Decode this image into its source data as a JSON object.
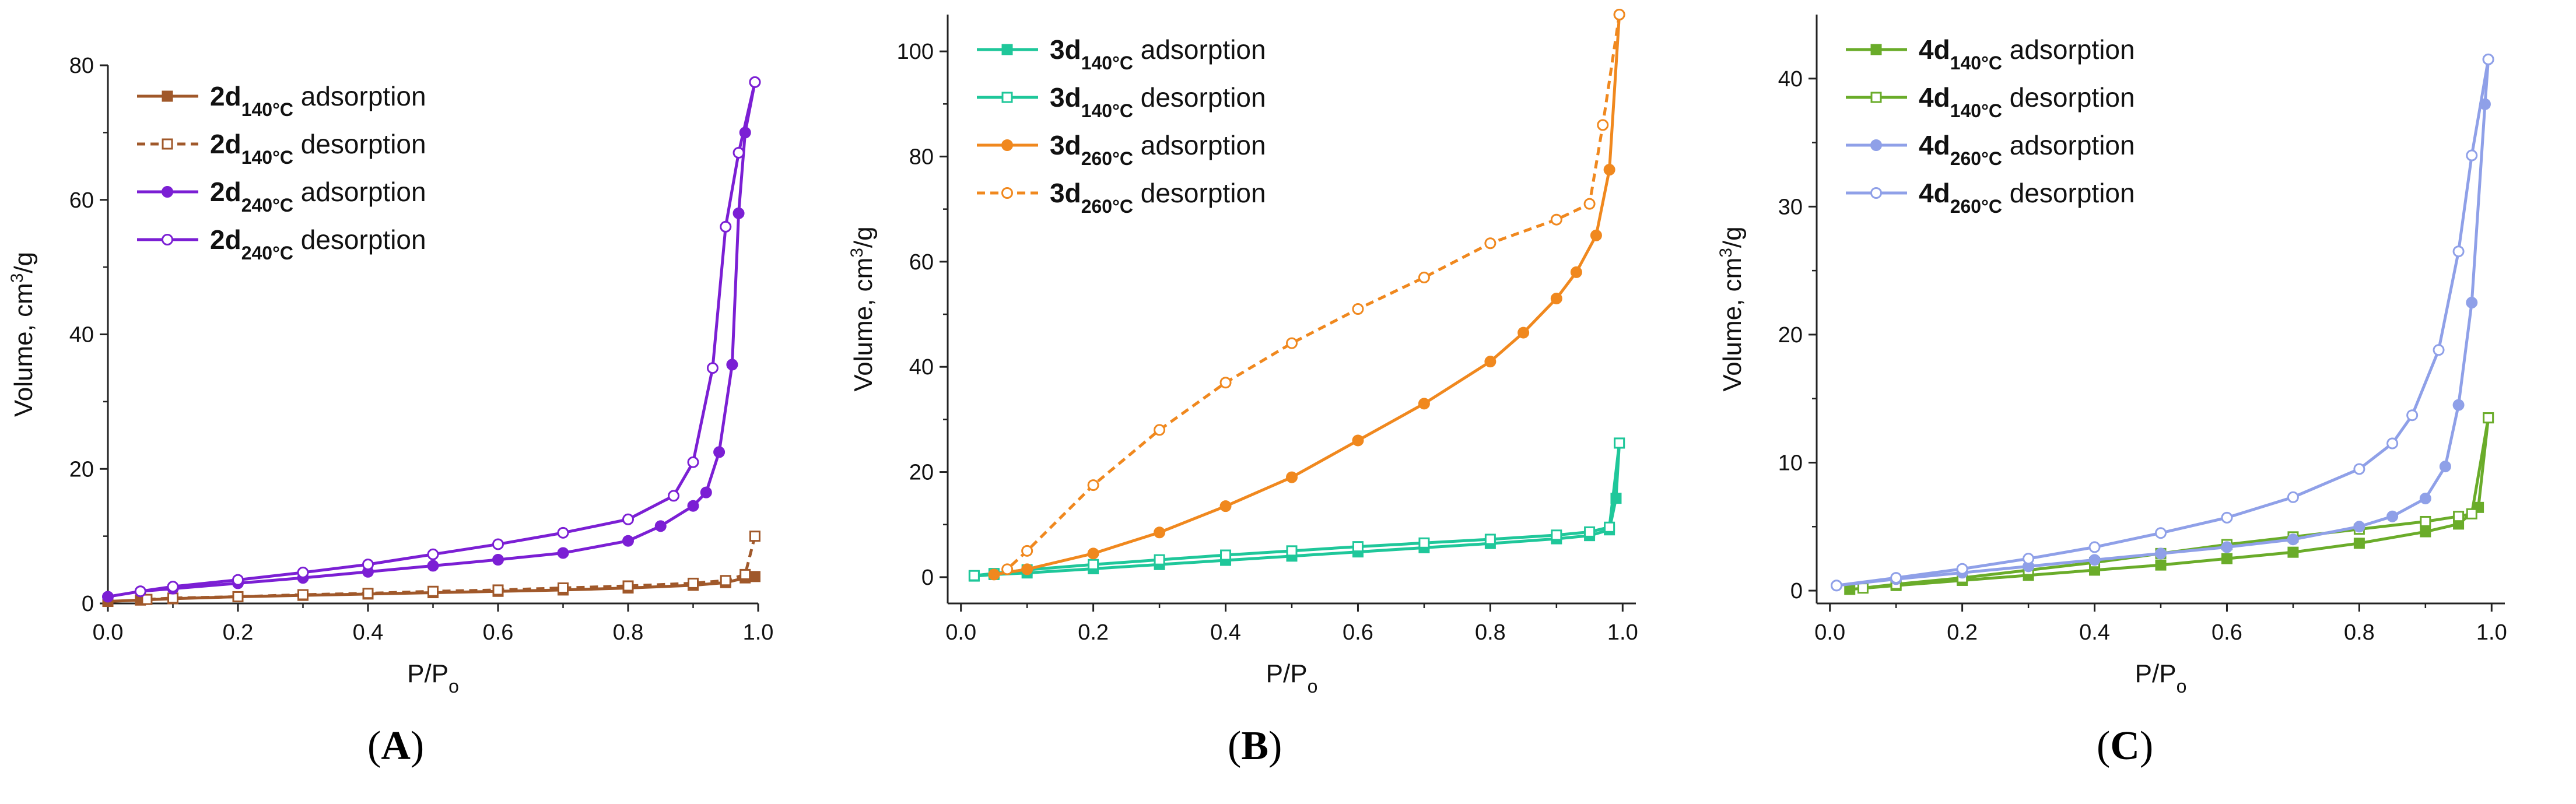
{
  "chart_data": [
    {
      "type": "line",
      "panel_label": "A",
      "xlabel": "P/P",
      "xlabel_sub": "o",
      "ylabel": "Volume, cm",
      "ylabel_sup": "3",
      "ylabel_tail": "/g",
      "xlim": [
        0,
        1
      ],
      "ylim": [
        0,
        80
      ],
      "xticks": [
        0.0,
        0.2,
        0.4,
        0.6,
        0.8,
        1.0
      ],
      "xtick_labels": [
        "0.0",
        "0.2",
        "0.4",
        "0.6",
        "0.8",
        "1.0"
      ],
      "yticks": [
        0,
        20,
        40,
        60,
        80
      ],
      "ytick_labels": [
        "0",
        "20",
        "40",
        "60",
        "80"
      ],
      "legend_position": "top-left",
      "series": [
        {
          "name_main": "2d",
          "name_sub": "140°C",
          "name_tail": " adsorption",
          "color": "#a0582a",
          "marker": "square",
          "filled": true,
          "dashed": false,
          "x": [
            0.0,
            0.05,
            0.1,
            0.2,
            0.3,
            0.4,
            0.5,
            0.6,
            0.7,
            0.8,
            0.9,
            0.95,
            0.98,
            0.995
          ],
          "y": [
            0.3,
            0.5,
            0.7,
            1.0,
            1.2,
            1.4,
            1.6,
            1.8,
            2.0,
            2.3,
            2.7,
            3.1,
            3.8,
            4.0
          ]
        },
        {
          "name_main": "2d",
          "name_sub": "140°C",
          "name_tail": " desorption",
          "color": "#a0582a",
          "marker": "square",
          "filled": false,
          "dashed": true,
          "x": [
            0.995,
            0.98,
            0.95,
            0.9,
            0.8,
            0.7,
            0.6,
            0.5,
            0.4,
            0.3,
            0.2,
            0.1,
            0.06
          ],
          "y": [
            10.0,
            4.3,
            3.4,
            3.0,
            2.6,
            2.3,
            2.0,
            1.8,
            1.5,
            1.3,
            1.0,
            0.8,
            0.6
          ]
        },
        {
          "name_main": "2d",
          "name_sub": "240°C",
          "name_tail": " adsorption",
          "color": "#7b1fd4",
          "marker": "circle",
          "filled": true,
          "dashed": false,
          "x": [
            0.0,
            0.05,
            0.1,
            0.2,
            0.3,
            0.4,
            0.5,
            0.6,
            0.7,
            0.8,
            0.85,
            0.9,
            0.92,
            0.94,
            0.96,
            0.97,
            0.98,
            0.995
          ],
          "y": [
            1.0,
            1.8,
            2.2,
            3.0,
            3.8,
            4.7,
            5.6,
            6.5,
            7.5,
            9.3,
            11.5,
            14.5,
            16.5,
            22.5,
            35.5,
            58.0,
            70.0,
            77.5
          ]
        },
        {
          "name_main": "2d",
          "name_sub": "240°C",
          "name_tail": " desorption",
          "color": "#7b1fd4",
          "marker": "circle",
          "filled": false,
          "dashed": false,
          "x": [
            0.995,
            0.97,
            0.95,
            0.93,
            0.9,
            0.87,
            0.8,
            0.7,
            0.6,
            0.5,
            0.4,
            0.3,
            0.2,
            0.1,
            0.05
          ],
          "y": [
            77.5,
            67.0,
            56.0,
            35.0,
            21.0,
            16.0,
            12.5,
            10.5,
            8.8,
            7.3,
            5.8,
            4.6,
            3.5,
            2.5,
            1.8
          ]
        }
      ]
    },
    {
      "type": "line",
      "panel_label": "B",
      "xlabel": "P/P",
      "xlabel_sub": "o",
      "ylabel": "Volume, cm",
      "ylabel_sup": "3",
      "ylabel_tail": "/g",
      "xlim": [
        -0.02,
        1.02
      ],
      "ylim": [
        -5,
        107
      ],
      "xticks": [
        0.0,
        0.2,
        0.4,
        0.6,
        0.8,
        1.0
      ],
      "xtick_labels": [
        "0.0",
        "0.2",
        "0.4",
        "0.6",
        "0.8",
        "1.0"
      ],
      "yticks": [
        0,
        20,
        40,
        60,
        80,
        100
      ],
      "ytick_labels": [
        "0",
        "20",
        "40",
        "60",
        "80",
        "100"
      ],
      "legend_position": "top-left",
      "series": [
        {
          "name_main": "3d",
          "name_sub": "140°C",
          "name_tail": " adsorption",
          "color": "#1fc79a",
          "marker": "square",
          "filled": true,
          "dashed": false,
          "x": [
            0.02,
            0.05,
            0.1,
            0.2,
            0.3,
            0.4,
            0.5,
            0.6,
            0.7,
            0.8,
            0.9,
            0.95,
            0.98,
            0.99,
            0.995
          ],
          "y": [
            0.2,
            0.5,
            0.8,
            1.6,
            2.4,
            3.2,
            4.0,
            4.8,
            5.6,
            6.4,
            7.3,
            7.9,
            9.0,
            15.0,
            25.5
          ]
        },
        {
          "name_main": "3d",
          "name_sub": "140°C",
          "name_tail": " desorption",
          "color": "#1fc79a",
          "marker": "square",
          "filled": false,
          "dashed": false,
          "x": [
            0.995,
            0.98,
            0.95,
            0.9,
            0.8,
            0.7,
            0.6,
            0.5,
            0.4,
            0.3,
            0.2,
            0.1,
            0.05,
            0.02
          ],
          "y": [
            25.5,
            9.5,
            8.6,
            8.0,
            7.2,
            6.5,
            5.8,
            5.0,
            4.2,
            3.3,
            2.4,
            1.4,
            0.7,
            0.3
          ]
        },
        {
          "name_main": "3d",
          "name_sub": "260°C",
          "name_tail": " adsorption",
          "color": "#f0881e",
          "marker": "circle",
          "filled": true,
          "dashed": false,
          "x": [
            0.05,
            0.1,
            0.2,
            0.3,
            0.4,
            0.5,
            0.6,
            0.7,
            0.8,
            0.85,
            0.9,
            0.93,
            0.96,
            0.98,
            0.995
          ],
          "y": [
            0.5,
            1.5,
            4.5,
            8.5,
            13.5,
            19.0,
            26.0,
            33.0,
            41.0,
            46.5,
            53.0,
            58.0,
            65.0,
            77.5,
            107.0
          ]
        },
        {
          "name_main": "3d",
          "name_sub": "260°C",
          "name_tail": " desorption",
          "color": "#f0881e",
          "marker": "circle",
          "filled": false,
          "dashed": true,
          "x": [
            0.995,
            0.97,
            0.95,
            0.9,
            0.8,
            0.7,
            0.6,
            0.5,
            0.4,
            0.3,
            0.2,
            0.1,
            0.07
          ],
          "y": [
            107.0,
            86.0,
            71.0,
            68.0,
            63.5,
            57.0,
            51.0,
            44.5,
            37.0,
            28.0,
            17.5,
            5.0,
            1.5
          ]
        }
      ]
    },
    {
      "type": "line",
      "panel_label": "C",
      "xlabel": "P/P",
      "xlabel_sub": "o",
      "ylabel": "Volume, cm",
      "ylabel_sup": "3",
      "ylabel_tail": "/g",
      "xlim": [
        -0.02,
        1.02
      ],
      "ylim": [
        -1,
        45
      ],
      "xticks": [
        0.0,
        0.2,
        0.4,
        0.6,
        0.8,
        1.0
      ],
      "xtick_labels": [
        "0.0",
        "0.2",
        "0.4",
        "0.6",
        "0.8",
        "1.0"
      ],
      "yticks": [
        0,
        10,
        20,
        30,
        40
      ],
      "ytick_labels": [
        "0",
        "10",
        "20",
        "30",
        "40"
      ],
      "legend_position": "top-left",
      "series": [
        {
          "name_main": "4d",
          "name_sub": "140°C",
          "name_tail": " adsorption",
          "color": "#6aac2a",
          "marker": "square",
          "filled": true,
          "dashed": false,
          "x": [
            0.03,
            0.1,
            0.2,
            0.3,
            0.4,
            0.5,
            0.6,
            0.7,
            0.8,
            0.9,
            0.95,
            0.98,
            0.995
          ],
          "y": [
            0.1,
            0.4,
            0.8,
            1.2,
            1.6,
            2.0,
            2.5,
            3.0,
            3.7,
            4.6,
            5.2,
            6.5,
            13.5
          ]
        },
        {
          "name_main": "4d",
          "name_sub": "140°C",
          "name_tail": " desorption",
          "color": "#6aac2a",
          "marker": "square",
          "filled": false,
          "dashed": false,
          "x": [
            0.995,
            0.97,
            0.95,
            0.9,
            0.8,
            0.7,
            0.6,
            0.5,
            0.4,
            0.3,
            0.2,
            0.1,
            0.05
          ],
          "y": [
            13.5,
            6.0,
            5.8,
            5.4,
            4.8,
            4.2,
            3.6,
            2.9,
            2.2,
            1.6,
            1.0,
            0.5,
            0.2
          ]
        },
        {
          "name_main": "4d",
          "name_sub": "260°C",
          "name_tail": " adsorption",
          "color": "#8fa0e8",
          "marker": "circle",
          "filled": true,
          "dashed": false,
          "x": [
            0.01,
            0.1,
            0.2,
            0.3,
            0.4,
            0.5,
            0.6,
            0.7,
            0.8,
            0.85,
            0.9,
            0.93,
            0.95,
            0.97,
            0.99,
            0.995
          ],
          "y": [
            0.4,
            0.9,
            1.4,
            1.9,
            2.4,
            2.9,
            3.4,
            4.0,
            5.0,
            5.8,
            7.2,
            9.7,
            14.5,
            22.5,
            38.0,
            41.5
          ]
        },
        {
          "name_main": "4d",
          "name_sub": "260°C",
          "name_tail": " desorption",
          "color": "#8fa0e8",
          "marker": "circle",
          "filled": false,
          "dashed": false,
          "x": [
            0.995,
            0.97,
            0.95,
            0.92,
            0.88,
            0.85,
            0.8,
            0.7,
            0.6,
            0.5,
            0.4,
            0.3,
            0.2,
            0.1,
            0.01
          ],
          "y": [
            41.5,
            34.0,
            26.5,
            18.8,
            13.7,
            11.5,
            9.5,
            7.3,
            5.7,
            4.5,
            3.4,
            2.5,
            1.7,
            1.0,
            0.4
          ]
        }
      ]
    }
  ]
}
